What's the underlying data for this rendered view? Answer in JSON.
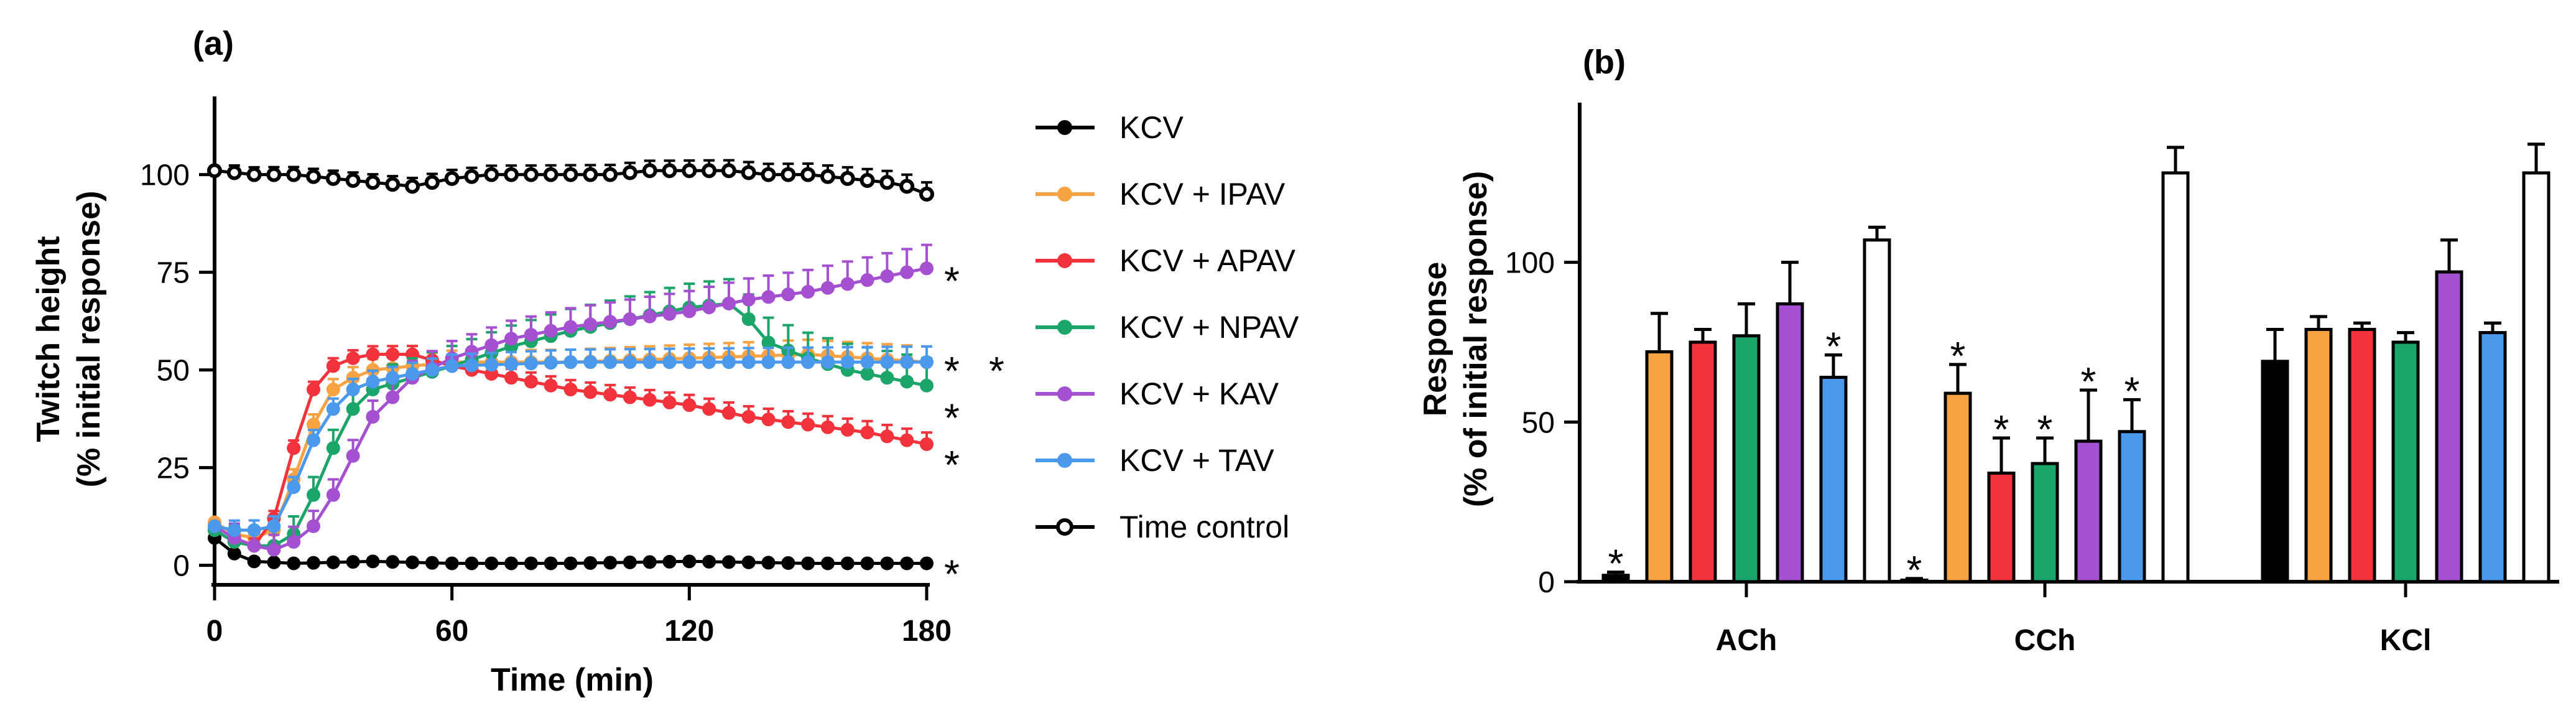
{
  "chart_data": [
    {
      "panel": "(a)",
      "type": "line",
      "xlabel": "Time (min)",
      "ylabel_line1": "Twitch height",
      "ylabel_line2": "(% initial response)",
      "xlim": [
        0,
        180
      ],
      "ylim": [
        -5,
        120
      ],
      "xticks": [
        0,
        60,
        120,
        180
      ],
      "yticks": [
        0,
        25,
        50,
        75,
        100
      ],
      "legend_position": "right",
      "series": [
        {
          "name": "KCV",
          "color": "#000000",
          "marker": "filled",
          "star": "*",
          "t": [
            0,
            5,
            10,
            20,
            40,
            60,
            90,
            120,
            150,
            180
          ],
          "y": [
            7,
            3,
            1,
            0.5,
            1,
            0.5,
            0.5,
            1,
            0.5,
            0.5
          ]
        },
        {
          "name": "KCV + IPAV",
          "color": "#F7A243",
          "marker": "filled",
          "star": "*",
          "t": [
            0,
            5,
            10,
            15,
            20,
            25,
            30,
            35,
            40,
            50,
            60,
            90,
            120,
            150,
            165,
            180
          ],
          "y": [
            11,
            8,
            7,
            9,
            22,
            36,
            45,
            48,
            50,
            51,
            52,
            52,
            53,
            54,
            53,
            52
          ]
        },
        {
          "name": "KCV + APAV",
          "color": "#F2333C",
          "marker": "filled",
          "star": "*",
          "t": [
            0,
            5,
            10,
            15,
            20,
            25,
            30,
            35,
            40,
            50,
            60,
            75,
            90,
            105,
            120,
            135,
            150,
            165,
            180
          ],
          "y": [
            9,
            6,
            5,
            12,
            30,
            45,
            51,
            53,
            54,
            54,
            51,
            48,
            45,
            43,
            41,
            38,
            36,
            34,
            31
          ]
        },
        {
          "name": "KCV + NPAV",
          "color": "#1CA56A",
          "marker": "filled",
          "star": "*",
          "t": [
            0,
            5,
            10,
            15,
            20,
            25,
            30,
            35,
            40,
            50,
            60,
            75,
            90,
            105,
            120,
            130,
            135,
            140,
            150,
            160,
            170,
            180
          ],
          "y": [
            9,
            6,
            5,
            5,
            8,
            18,
            30,
            40,
            45,
            48,
            51,
            56,
            60,
            63,
            66,
            67,
            63,
            57,
            53,
            50,
            48,
            46
          ]
        },
        {
          "name": "KCV + KAV",
          "color": "#A550D0",
          "marker": "filled",
          "star": "*",
          "t": [
            0,
            5,
            10,
            15,
            20,
            25,
            30,
            35,
            40,
            50,
            60,
            75,
            90,
            105,
            120,
            135,
            150,
            165,
            180
          ],
          "y": [
            10,
            7,
            5,
            4,
            6,
            10,
            18,
            28,
            38,
            48,
            53,
            58,
            61,
            63,
            65,
            68,
            70,
            73,
            76
          ]
        },
        {
          "name": "KCV + TAV",
          "color": "#4B99EC",
          "marker": "filled",
          "star": "*",
          "t": [
            0,
            5,
            10,
            15,
            20,
            25,
            30,
            35,
            40,
            50,
            60,
            90,
            120,
            150,
            180
          ],
          "y": [
            10,
            9,
            9,
            10,
            20,
            32,
            40,
            45,
            47,
            49,
            51,
            52,
            52,
            52,
            52
          ]
        },
        {
          "name": "Time control",
          "color": "#000000",
          "marker": "open",
          "star": "",
          "t": [
            0,
            10,
            20,
            30,
            40,
            50,
            60,
            70,
            80,
            90,
            100,
            110,
            120,
            130,
            140,
            150,
            160,
            170,
            175,
            180
          ],
          "y": [
            101,
            100,
            100,
            99,
            98,
            97,
            99,
            100,
            100,
            100,
            100,
            101,
            101,
            101,
            100,
            100,
            99,
            98,
            97,
            95
          ]
        }
      ]
    },
    {
      "panel": "(b)",
      "type": "bar",
      "ylabel_line1": "Response",
      "ylabel_line2": "(% of initial response)",
      "ylim": [
        0,
        150
      ],
      "yticks": [
        0,
        50,
        100
      ],
      "categories": [
        "ACh",
        "CCh",
        "KCl"
      ],
      "series": [
        {
          "name": "KCV",
          "color": "#000000",
          "values": [
            2,
            0.5,
            69
          ],
          "errors": [
            1,
            0.5,
            10
          ],
          "stars": [
            "*",
            "*",
            ""
          ]
        },
        {
          "name": "KCV + IPAV",
          "color": "#F7A243",
          "values": [
            72,
            59,
            79
          ],
          "errors": [
            12,
            9,
            4
          ],
          "stars": [
            "",
            "*",
            ""
          ]
        },
        {
          "name": "KCV + APAV",
          "color": "#F2333C",
          "values": [
            75,
            34,
            79
          ],
          "errors": [
            4,
            11,
            2
          ],
          "stars": [
            "",
            "*",
            ""
          ]
        },
        {
          "name": "KCV + NPAV",
          "color": "#1CA56A",
          "values": [
            77,
            37,
            75
          ],
          "errors": [
            10,
            8,
            3
          ],
          "stars": [
            "",
            "*",
            ""
          ]
        },
        {
          "name": "KCV + KAV",
          "color": "#A550D0",
          "values": [
            87,
            44,
            97
          ],
          "errors": [
            13,
            16,
            10
          ],
          "stars": [
            "",
            "*",
            ""
          ]
        },
        {
          "name": "KCV + TAV",
          "color": "#4B99EC",
          "values": [
            64,
            47,
            78
          ],
          "errors": [
            7,
            10,
            3
          ],
          "stars": [
            "*",
            "*",
            ""
          ]
        },
        {
          "name": "Time control",
          "color": "#FFFFFF",
          "values": [
            107,
            128,
            128
          ],
          "errors": [
            4,
            8,
            9
          ],
          "stars": [
            "",
            "",
            ""
          ]
        }
      ]
    }
  ]
}
